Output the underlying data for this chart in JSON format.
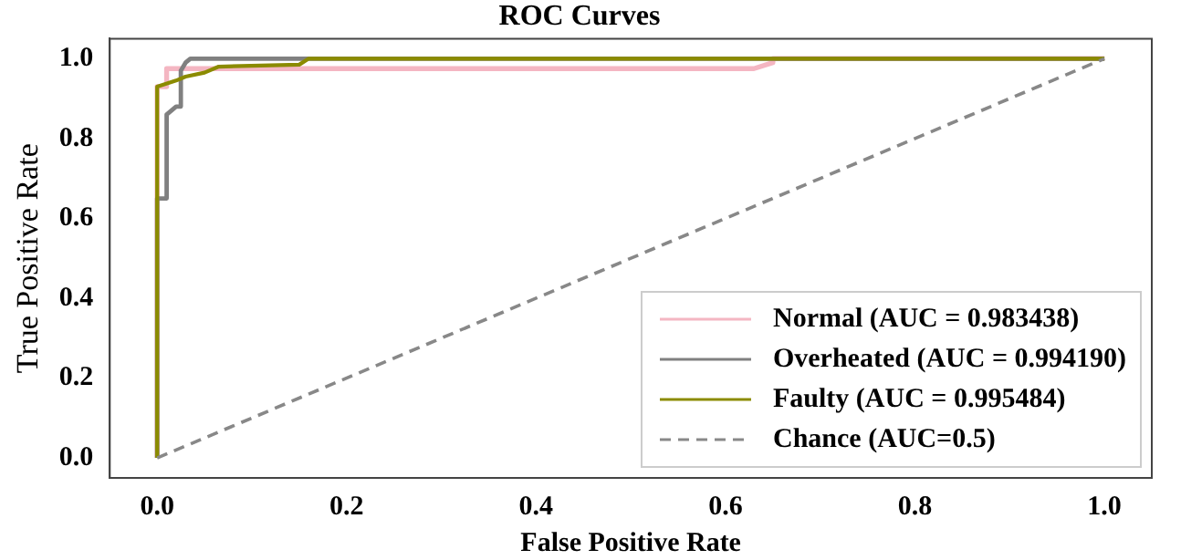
{
  "chart_data": {
    "type": "line",
    "title": "ROC Curves",
    "xlabel": "False Positive Rate",
    "ylabel": "True Positive Rate",
    "xlim": [
      -0.05,
      1.05
    ],
    "ylim": [
      -0.05,
      1.05
    ],
    "xticks": [
      {
        "value": 0,
        "label": "0.0"
      },
      {
        "value": 0.2,
        "label": "0.2"
      },
      {
        "value": 0.4,
        "label": "0.4"
      },
      {
        "value": 0.6,
        "label": "0.6"
      },
      {
        "value": 0.8,
        "label": "0.8"
      },
      {
        "value": 1,
        "label": "1.0"
      }
    ],
    "yticks": [
      {
        "value": 0,
        "label": "0.0"
      },
      {
        "value": 0.2,
        "label": "0.2"
      },
      {
        "value": 0.4,
        "label": "0.4"
      },
      {
        "value": 0.6,
        "label": "0.6"
      },
      {
        "value": 0.8,
        "label": "0.8"
      },
      {
        "value": 1,
        "label": "1.0"
      }
    ],
    "grid": false,
    "legend": "bottom right",
    "marker": "none",
    "series": [
      {
        "name": "Normal (AUC = 0.983438)",
        "color": "#f4b6c2",
        "line_style": "solid",
        "x": [
          0,
          0,
          0.01,
          0.01,
          0.63,
          0.65,
          0.65,
          1
        ],
        "values": [
          0,
          0.93,
          0.93,
          0.975,
          0.975,
          0.99,
          1.0,
          1.0
        ]
      },
      {
        "name": "Overheated (AUC = 0.994190)",
        "color": "#808080",
        "line_style": "solid",
        "x": [
          0,
          0,
          0.01,
          0.01,
          0.02,
          0.025,
          0.025,
          0.03,
          0.035,
          1
        ],
        "values": [
          0,
          0.65,
          0.65,
          0.86,
          0.88,
          0.88,
          0.97,
          0.99,
          1.0,
          1.0
        ]
      },
      {
        "name": "Faulty (AUC = 0.995484)",
        "color": "#8b8b00",
        "line_style": "solid",
        "x": [
          0,
          0,
          0.02,
          0.03,
          0.05,
          0.065,
          0.15,
          0.16,
          1
        ],
        "values": [
          0,
          0.93,
          0.945,
          0.955,
          0.965,
          0.98,
          0.985,
          1.0,
          1.0
        ]
      },
      {
        "name": "Chance (AUC=0.5)",
        "color": "#888888",
        "line_style": "dashed",
        "x": [
          0,
          1
        ],
        "values": [
          0,
          1
        ]
      }
    ]
  }
}
